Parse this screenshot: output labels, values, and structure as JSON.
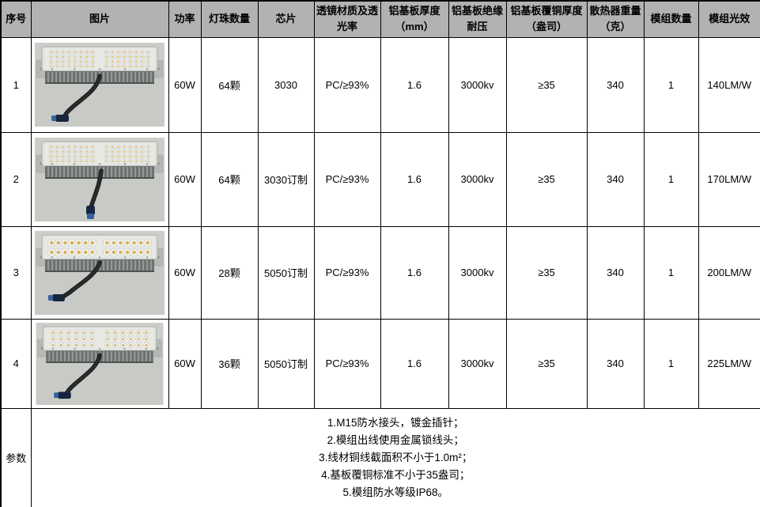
{
  "table": {
    "headers": [
      "序号",
      "图片",
      "功率",
      "灯珠数量",
      "芯片",
      "透镜材质及透光率",
      "铝基板厚度（mm）",
      "铝基板绝缘耐压",
      "铝基板覆铜厚度（盎司）",
      "散热器重量（克）",
      "模组数量",
      "模组光效"
    ],
    "rows": [
      {
        "no": "1",
        "power": "60W",
        "led_count": "64颗",
        "chip": "3030",
        "lens": "PC/≥93%",
        "thickness": "1.6",
        "voltage": "3000kv",
        "copper": "≥35",
        "weight": "340",
        "modules": "1",
        "efficacy": "140LM/W",
        "photo": {
          "led_rows": 4,
          "led_cols": 8,
          "groups": 2,
          "led_r": 2.6,
          "variant": 0
        }
      },
      {
        "no": "2",
        "power": "60W",
        "led_count": "64颗",
        "chip": "3030订制",
        "lens": "PC/≥93%",
        "thickness": "1.6",
        "voltage": "3000kv",
        "copper": "≥35",
        "weight": "340",
        "modules": "1",
        "efficacy": "170LM/W",
        "photo": {
          "led_rows": 4,
          "led_cols": 8,
          "groups": 2,
          "led_r": 2.6,
          "variant": 1
        }
      },
      {
        "no": "3",
        "power": "60W",
        "led_count": "28颗",
        "chip": "5050订制",
        "lens": "PC/≥93%",
        "thickness": "1.6",
        "voltage": "3000kv",
        "copper": "≥35",
        "weight": "340",
        "modules": "1",
        "efficacy": "200LM/W",
        "photo": {
          "led_rows": 2,
          "led_cols": 7,
          "groups": 2,
          "led_r": 5.0,
          "variant": 2
        }
      },
      {
        "no": "4",
        "power": "60W",
        "led_count": "36颗",
        "chip": "5050订制",
        "lens": "PC/≥93%",
        "thickness": "1.6",
        "voltage": "3000kv",
        "copper": "≥35",
        "weight": "340",
        "modules": "1",
        "efficacy": "225LM/W",
        "photo": {
          "led_rows": 3,
          "led_cols": 6,
          "groups": 2,
          "led_r": 3.4,
          "variant": 3
        }
      }
    ],
    "params_label": "参数",
    "params": [
      "1.M15防水接头，镀金插针；",
      "2.模组出线使用金属锁线头；",
      "3.线材铜线截面积不小于1.0m²；",
      "4.基板覆铜标准不小于35盎司；",
      "5.模组防水等级IP68。"
    ]
  },
  "colors": {
    "header_bg": "#b2b2b2",
    "border": "#000000",
    "photo_bg": "#c8cac6",
    "module_panel": "#dfe1dc",
    "led_lens": "#f2f3ef",
    "led_chip": "#d9b263",
    "heatsink": "#6b6f6e",
    "heatsink_fin": "#969a97",
    "cable": "#1f2123",
    "connector_body": "#17253d",
    "connector_tip": "#3563a0"
  }
}
